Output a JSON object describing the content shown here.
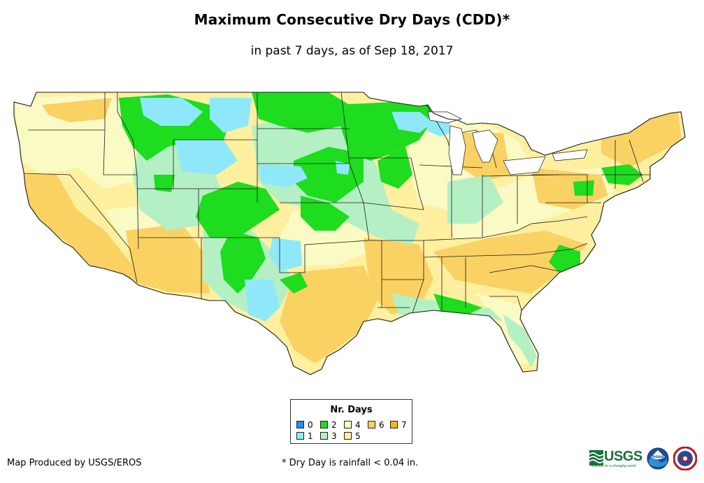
{
  "title": "Maximum Consecutive Dry Days (CDD)*",
  "subtitle": "in past 7 days, as of Sep 18, 2017",
  "legend": {
    "title": "Nr. Days",
    "items": [
      {
        "label": "0",
        "color": "#1e90ff"
      },
      {
        "label": "1",
        "color": "#8fe8fa"
      },
      {
        "label": "2",
        "color": "#1edc1e"
      },
      {
        "label": "3",
        "color": "#b4f0c4"
      },
      {
        "label": "4",
        "color": "#fafac4"
      },
      {
        "label": "5",
        "color": "#fff0a0"
      },
      {
        "label": "6",
        "color": "#fad264"
      },
      {
        "label": "7",
        "color": "#f5b800"
      }
    ]
  },
  "credit": "Map Produced by USGS/EROS",
  "footnote": "* Dry Day is rainfall < 0.04 in.",
  "logos": {
    "usgs": {
      "text": "USGS",
      "tagline": "science for a changing world",
      "color": "#1a6f3c"
    },
    "noaa": {
      "text": "noaa"
    }
  },
  "map": {
    "region": "Contiguous United States",
    "border_color": "#1a1a1a"
  }
}
